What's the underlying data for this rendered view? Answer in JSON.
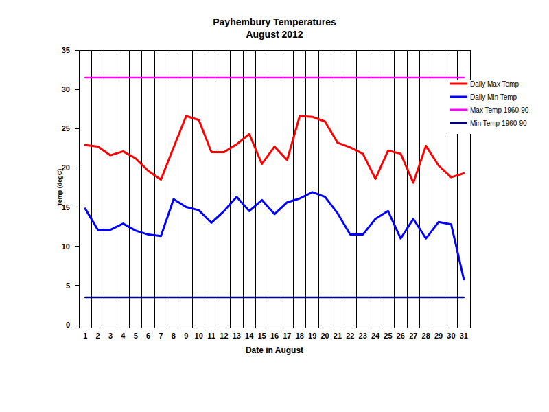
{
  "chart_data": {
    "type": "line",
    "title": "Payhembury Temperatures",
    "subtitle": "August 2012",
    "x_label": "Date in August",
    "y_label": "Temp (degC)",
    "categories": [
      "1",
      "2",
      "3",
      "4",
      "5",
      "6",
      "7",
      "8",
      "9",
      "10",
      "11",
      "12",
      "13",
      "14",
      "15",
      "16",
      "17",
      "18",
      "19",
      "20",
      "21",
      "22",
      "23",
      "24",
      "25",
      "26",
      "27",
      "28",
      "29",
      "30",
      "31"
    ],
    "ylim": [
      0,
      35
    ],
    "yticks": [
      0,
      5,
      10,
      15,
      20,
      25,
      30,
      35
    ],
    "grid": true,
    "legend": "right",
    "series": [
      {
        "name": "Daily Max Temp",
        "color": "#ff0000",
        "values": [
          22.9,
          22.7,
          21.6,
          22.1,
          21.2,
          19.6,
          18.5,
          22.6,
          26.6,
          26.1,
          22.0,
          22.0,
          23.0,
          24.3,
          20.5,
          22.7,
          21.0,
          26.6,
          26.5,
          25.9,
          23.2,
          22.6,
          21.8,
          18.6,
          22.2,
          21.8,
          18.1,
          22.8,
          20.3,
          18.8,
          19.3
        ]
      },
      {
        "name": "Daily Min Temp",
        "color": "#0000ff",
        "values": [
          14.8,
          12.1,
          12.1,
          12.9,
          12.0,
          11.5,
          11.3,
          16.0,
          15.0,
          14.6,
          13.0,
          14.5,
          16.3,
          14.5,
          15.9,
          14.1,
          15.6,
          16.1,
          16.9,
          16.3,
          14.2,
          11.5,
          11.5,
          13.5,
          14.5,
          11.0,
          13.5,
          11.0,
          13.1,
          12.8,
          5.8
        ]
      },
      {
        "name": "Max Temp 1960-90",
        "color": "#ff00ff",
        "values": [
          31.5,
          31.5,
          31.5,
          31.5,
          31.5,
          31.5,
          31.5,
          31.5,
          31.5,
          31.5,
          31.5,
          31.5,
          31.5,
          31.5,
          31.5,
          31.5,
          31.5,
          31.5,
          31.5,
          31.5,
          31.5,
          31.5,
          31.5,
          31.5,
          31.5,
          31.5,
          31.5,
          31.5,
          31.5,
          31.5,
          31.5
        ]
      },
      {
        "name": "Min Temp 1960-90",
        "color": "#000080",
        "values": [
          3.5,
          3.5,
          3.5,
          3.5,
          3.5,
          3.5,
          3.5,
          3.5,
          3.5,
          3.5,
          3.5,
          3.5,
          3.5,
          3.5,
          3.5,
          3.5,
          3.5,
          3.5,
          3.5,
          3.5,
          3.5,
          3.5,
          3.5,
          3.5,
          3.5,
          3.5,
          3.5,
          3.5,
          3.5,
          3.5,
          3.5
        ]
      }
    ]
  }
}
